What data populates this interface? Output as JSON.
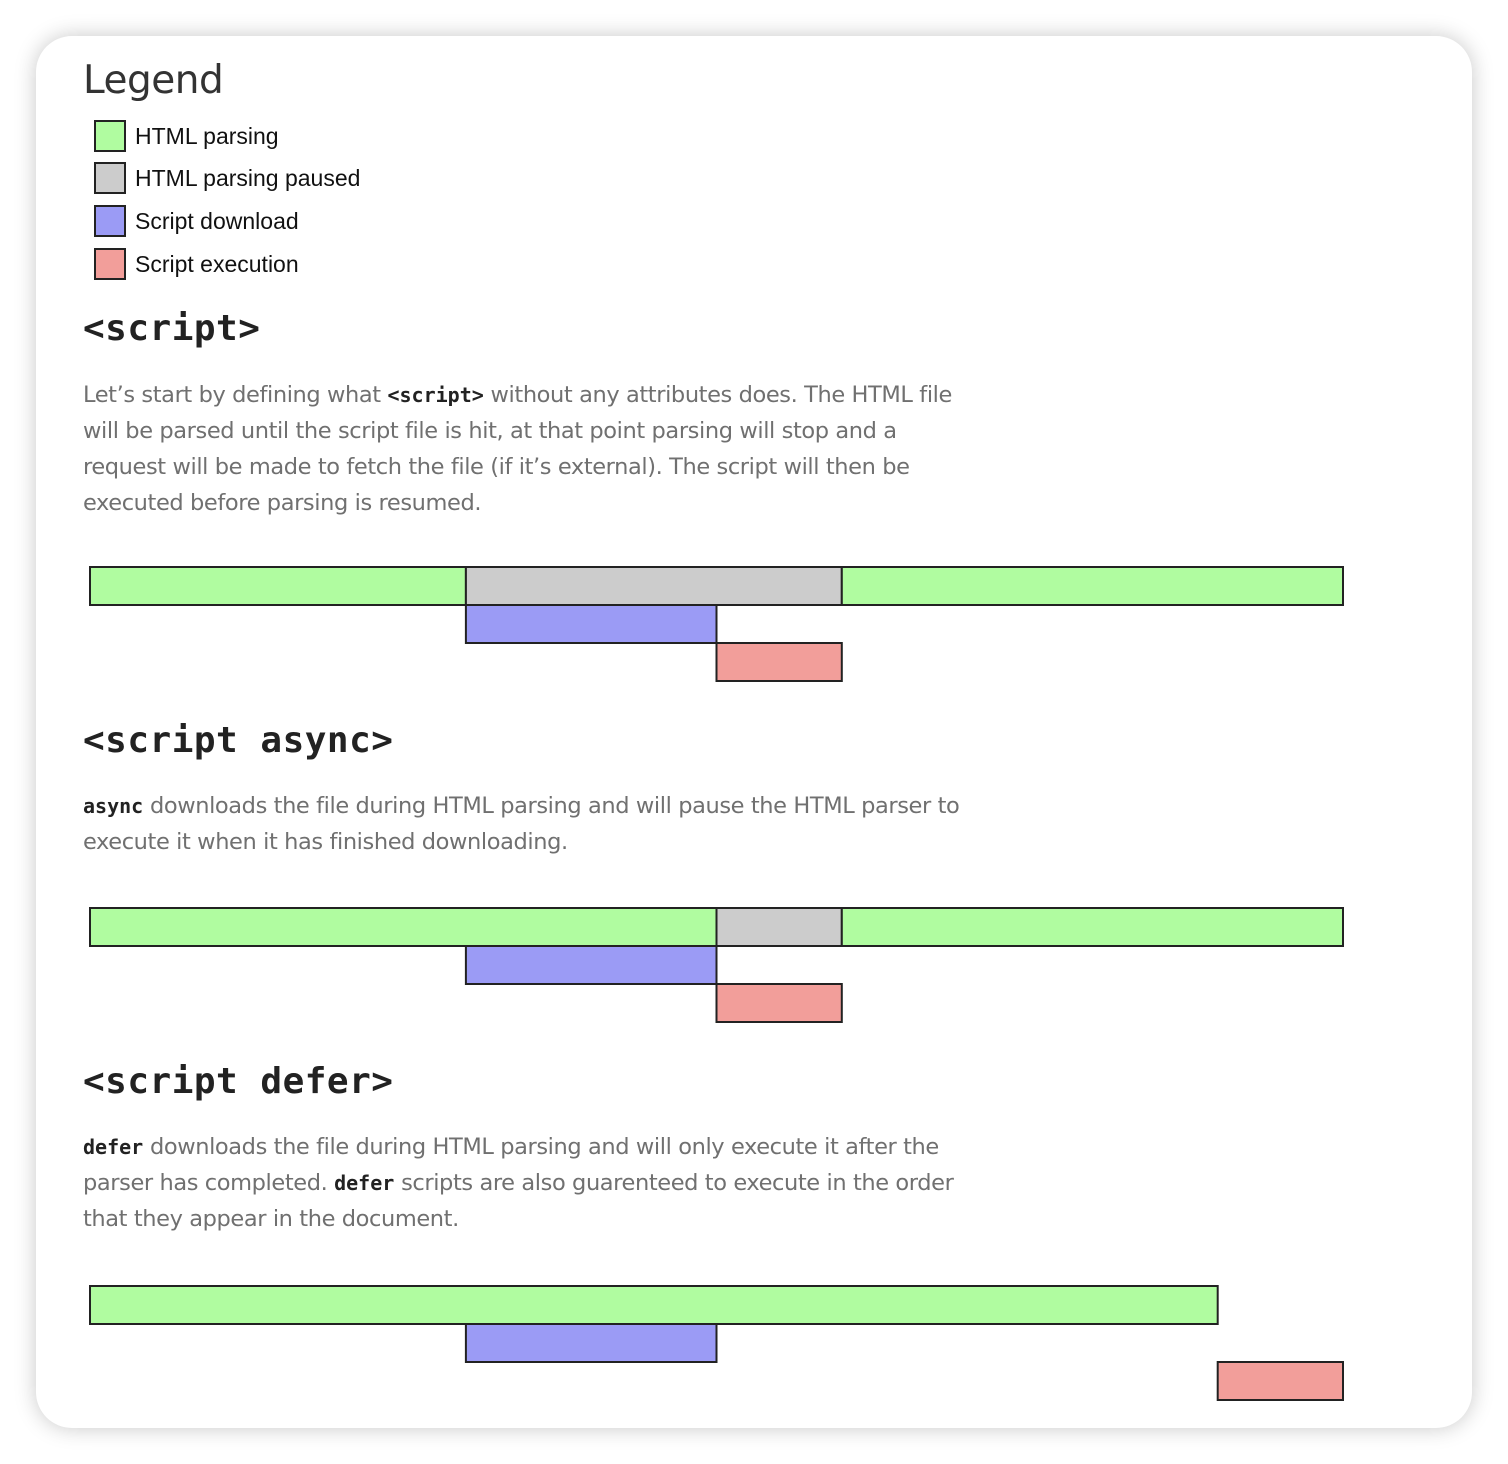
{
  "legend": {
    "title": "Legend",
    "items": [
      {
        "label": "HTML parsing",
        "color": "#b0fca0"
      },
      {
        "label": "HTML parsing paused",
        "color": "#cccccc"
      },
      {
        "label": "Script download",
        "color": "#9b9bf5"
      },
      {
        "label": "Script execution",
        "color": "#f29e9a"
      }
    ]
  },
  "sections": [
    {
      "heading": "<script>",
      "desc": {
        "c1": "Let’s start by defining what ",
        "k1": "<script>",
        "c2": " without any attributes does. The HTML file will be parsed until the script file is hit, at that point parsing will stop and a request will be made to fetch the file (if it’s external). The script will then be executed before parsing is resumed."
      }
    },
    {
      "heading": "<script async>",
      "desc": {
        "k1": "async",
        "c1": " downloads the file during HTML parsing and will pause the HTML parser to execute it when it has finished downloading."
      }
    },
    {
      "heading": "<script defer>",
      "desc": {
        "k1": "defer",
        "c1": " downloads the file during HTML parsing and will only execute it after the parser has completed. ",
        "k2": "defer",
        "c2": " scripts are also guarenteed to execute in the order that they appear in the document."
      }
    }
  ],
  "chart_data": [
    {
      "type": "timeline",
      "title": "<script>",
      "x_range": [
        0,
        10
      ],
      "segments": [
        {
          "kind": "HTML parsing",
          "row": 0,
          "start": 0,
          "end": 3
        },
        {
          "kind": "HTML parsing paused",
          "row": 0,
          "start": 3,
          "end": 6
        },
        {
          "kind": "HTML parsing",
          "row": 0,
          "start": 6,
          "end": 10
        },
        {
          "kind": "Script download",
          "row": 1,
          "start": 3,
          "end": 5
        },
        {
          "kind": "Script execution",
          "row": 2,
          "start": 5,
          "end": 6
        }
      ]
    },
    {
      "type": "timeline",
      "title": "<script async>",
      "x_range": [
        0,
        10
      ],
      "segments": [
        {
          "kind": "HTML parsing",
          "row": 0,
          "start": 0,
          "end": 5
        },
        {
          "kind": "HTML parsing paused",
          "row": 0,
          "start": 5,
          "end": 6
        },
        {
          "kind": "HTML parsing",
          "row": 0,
          "start": 6,
          "end": 10
        },
        {
          "kind": "Script download",
          "row": 1,
          "start": 3,
          "end": 5
        },
        {
          "kind": "Script execution",
          "row": 2,
          "start": 5,
          "end": 6
        }
      ]
    },
    {
      "type": "timeline",
      "title": "<script defer>",
      "x_range": [
        0,
        10
      ],
      "segments": [
        {
          "kind": "HTML parsing",
          "row": 0,
          "start": 0,
          "end": 9
        },
        {
          "kind": "Script download",
          "row": 1,
          "start": 3,
          "end": 5
        },
        {
          "kind": "Script execution",
          "row": 2,
          "start": 9,
          "end": 10
        }
      ]
    }
  ]
}
